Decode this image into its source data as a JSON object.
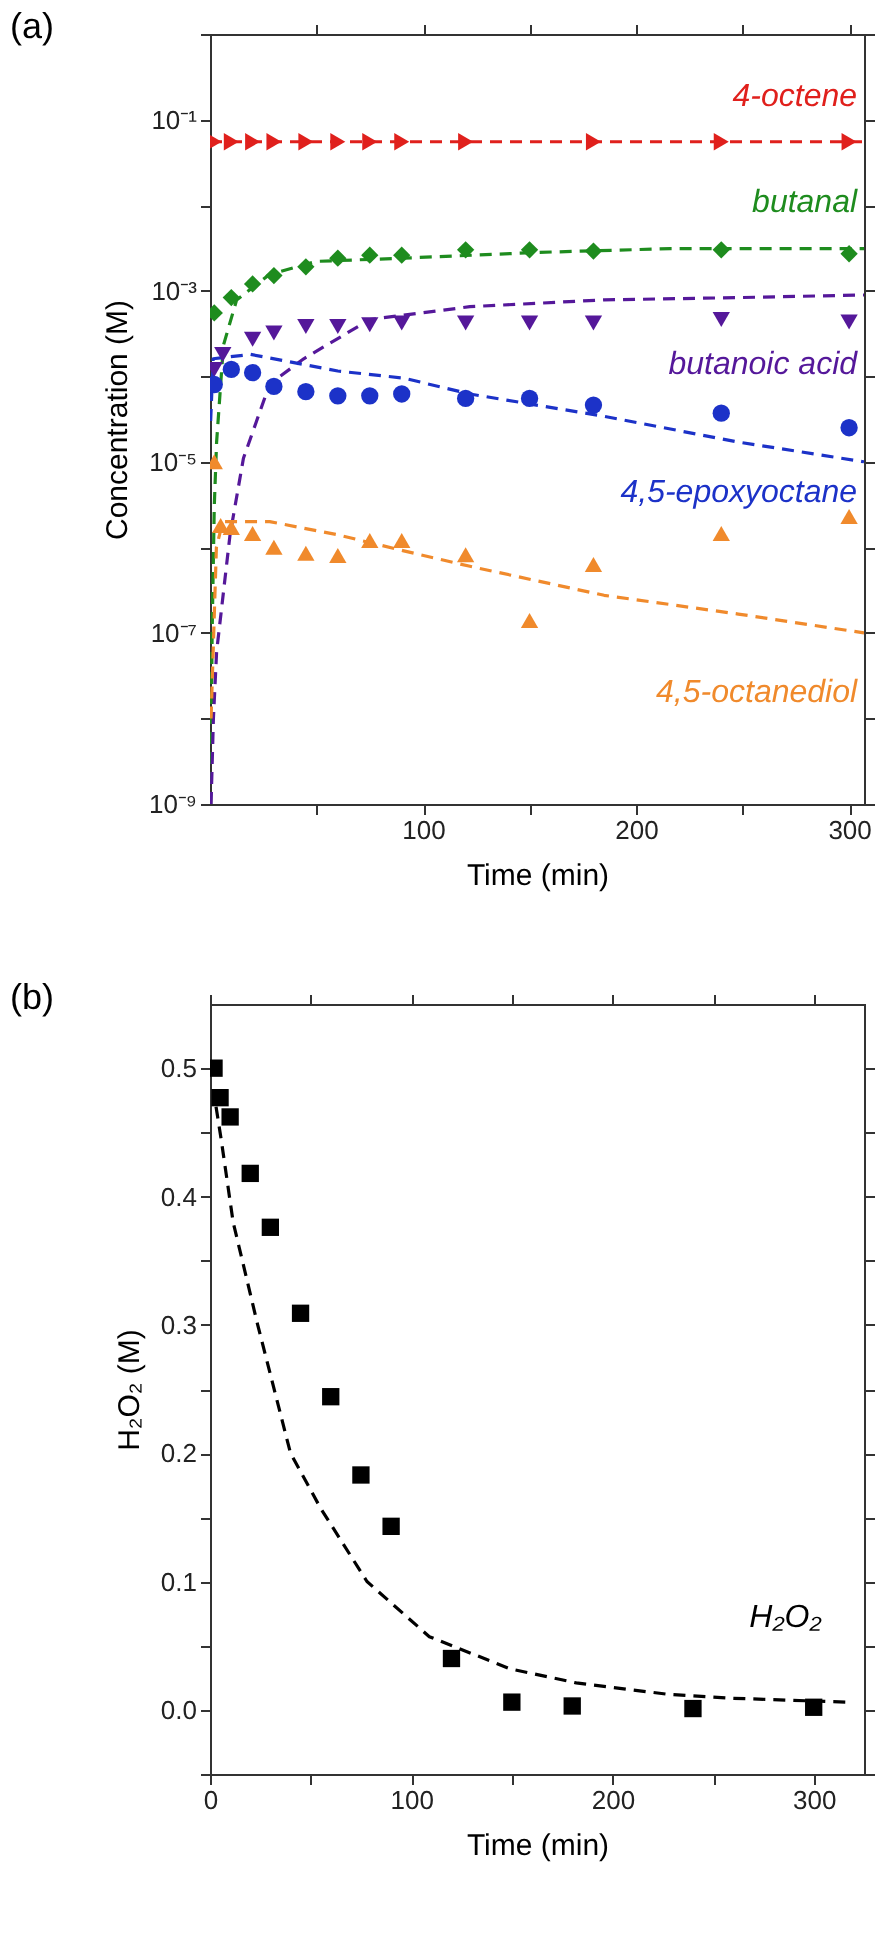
{
  "chart_data": [
    {
      "type": "scatter",
      "title": "(a)",
      "xlabel": "Time (min)",
      "ylabel": "Concentration (M)",
      "log": "y",
      "grid": false,
      "legend": false,
      "xlim": [
        0,
        307
      ],
      "xticks": [
        {
          "value": 50,
          "label": null
        },
        100,
        {
          "value": 150,
          "label": null
        },
        200,
        {
          "value": 250,
          "label": null
        },
        300
      ],
      "ylim": [
        1e-09,
        1
      ],
      "yticks": [
        {
          "value": 1,
          "label": null
        },
        {
          "value": 0.1,
          "label": "10⁻¹"
        },
        {
          "value": 0.01,
          "label": null
        },
        {
          "value": 0.001,
          "label": "10⁻³"
        },
        {
          "value": 0.0001,
          "label": null
        },
        {
          "value": 1e-05,
          "label": "10⁻⁵"
        },
        {
          "value": 1e-06,
          "label": null
        },
        {
          "value": 1e-07,
          "label": "10⁻⁷"
        },
        {
          "value": 1e-08,
          "label": null
        },
        {
          "value": 1e-09,
          "label": "10⁻⁹"
        }
      ],
      "series": [
        {
          "type": "line",
          "line_style": "dashed",
          "color": "#e0201c",
          "x": [
            0,
            307
          ],
          "values": [
            0.055,
            0.055
          ]
        },
        {
          "type": "line",
          "line_style": "dashed",
          "color": "#1e8c1e",
          "x": [
            0.3,
            1,
            2,
            3.1,
            6.3,
            12.5,
            28,
            50,
            91,
            154,
            216,
            307
          ],
          "values": [
            1e-09,
            1e-07,
            3e-06,
            1.7e-05,
            0.00023,
            0.00078,
            0.00155,
            0.0022,
            0.0024,
            0.0028,
            0.0031,
            0.0031
          ]
        },
        {
          "type": "line",
          "line_style": "dashed",
          "color": "#55189a",
          "x": [
            0.5,
            1.6,
            3.1,
            9.4,
            15.7,
            28,
            44,
            75,
            122,
            185,
            248,
            307
          ],
          "values": [
            1e-09,
            1e-08,
            6e-08,
            1.4e-06,
            1.1e-05,
            8.1e-05,
            0.00016,
            0.00046,
            0.00065,
            0.00078,
            0.00083,
            0.00089
          ]
        },
        {
          "type": "line",
          "line_style": "dashed",
          "color": "#1c32c8",
          "x": [
            0.3,
            1.5,
            19,
            60,
            91,
            122,
            185,
            248,
            307
          ],
          "values": [
            3e-05,
            0.00016,
            0.00018,
            0.000115,
            9.5e-05,
            6.2e-05,
            3.4e-05,
            1.7e-05,
            1e-05
          ]
        },
        {
          "type": "line",
          "line_style": "dashed",
          "color": "#f08a2c",
          "x": [
            0.5,
            3,
            6,
            28,
            60,
            91,
            122,
            185,
            248,
            307
          ],
          "values": [
            1e-08,
            1e-06,
            2e-06,
            2e-06,
            1.4e-06,
            9.1e-07,
            6e-07,
            2.75e-07,
            1.66e-07,
            1e-07
          ]
        },
        {
          "name": "4-octene",
          "type": "scatter",
          "marker": "triangle-right",
          "color": "#e0201c",
          "x": [
            2,
            10,
            20,
            30,
            45,
            60,
            75,
            90,
            120,
            180,
            240,
            300
          ],
          "values": [
            0.055,
            0.055,
            0.055,
            0.055,
            0.055,
            0.055,
            0.055,
            0.055,
            0.055,
            0.055,
            0.055,
            0.055
          ]
        },
        {
          "name": "butanal",
          "type": "scatter",
          "marker": "diamond",
          "color": "#1e8c1e",
          "x": [
            2,
            10,
            20,
            30,
            45,
            60,
            75,
            90,
            120,
            150,
            180,
            240,
            300
          ],
          "values": [
            0.00055,
            0.00083,
            0.0012,
            0.0015,
            0.0019,
            0.0024,
            0.0026,
            0.0026,
            0.003,
            0.003,
            0.0029,
            0.003,
            0.0027
          ]
        },
        {
          "name": "butanoic acid",
          "type": "scatter",
          "marker": "triangle-down",
          "color": "#55189a",
          "x": [
            2,
            6,
            20,
            30,
            45,
            60,
            75,
            90,
            120,
            150,
            180,
            240,
            300
          ],
          "values": [
            0.00012,
            0.00018,
            0.00027,
            0.00032,
            0.00038,
            0.00038,
            0.0004,
            0.00042,
            0.00042,
            0.00042,
            0.00042,
            0.00046,
            0.00043
          ]
        },
        {
          "name": "4,5-epoxyoctane",
          "type": "scatter",
          "marker": "circle",
          "color": "#1c32c8",
          "x": [
            2,
            10,
            20,
            30,
            45,
            60,
            75,
            90,
            120,
            150,
            180,
            240,
            300
          ],
          "values": [
            8e-05,
            0.00012,
            0.00011,
            7.6e-05,
            6.6e-05,
            5.9e-05,
            5.9e-05,
            6.2e-05,
            5.5e-05,
            5.5e-05,
            4.6e-05,
            3.7e-05,
            2.5e-05
          ]
        },
        {
          "name": "4,5-octanediol",
          "type": "scatter",
          "marker": "triangle-up",
          "color": "#f08a2c",
          "x": [
            2,
            5,
            10,
            20,
            30,
            45,
            60,
            75,
            90,
            120,
            150,
            180,
            240,
            300
          ],
          "values": [
            1e-05,
            1.8e-06,
            1.7e-06,
            1.45e-06,
            1e-06,
            8.5e-07,
            8e-07,
            1.2e-06,
            1.2e-06,
            8.2e-07,
            1.4e-07,
            6.3e-07,
            1.45e-06,
            2.3e-06
          ]
        }
      ]
    },
    {
      "type": "scatter",
      "title": "(b)",
      "xlabel": "Time (min)",
      "ylabel": "H₂O₂ (M)",
      "grid": false,
      "legend": false,
      "xlim": [
        0,
        325
      ],
      "xticks": [
        0,
        {
          "value": 50,
          "label": null
        },
        100,
        {
          "value": 150,
          "label": null
        },
        200,
        {
          "value": 250,
          "label": null
        },
        300
      ],
      "ylim": [
        -0.05,
        0.55
      ],
      "yticks": [
        {
          "value": -0.05,
          "label": null
        },
        {
          "value": 0,
          "label": "0.0"
        },
        {
          "value": 0.05,
          "label": null
        },
        0.1,
        {
          "value": 0.15,
          "label": null
        },
        0.2,
        {
          "value": 0.25,
          "label": null
        },
        0.3,
        {
          "value": 0.35,
          "label": null
        },
        0.4,
        {
          "value": 0.45,
          "label": null
        },
        0.5
      ],
      "series": [
        {
          "type": "line",
          "line_style": "dashed",
          "color": "#000000",
          "x": [
            3,
            5.6,
            11.5,
            23.7,
            40,
            55,
            78,
            109,
            149,
            182,
            228,
            260,
            316
          ],
          "values": [
            0.47,
            0.444,
            0.38,
            0.3,
            0.2,
            0.157,
            0.1,
            0.057,
            0.032,
            0.021,
            0.012,
            0.009,
            0.006
          ]
        },
        {
          "name": "H₂O₂",
          "type": "scatter",
          "marker": "square",
          "color": "#000000",
          "x": [
            2,
            5,
            10,
            20,
            30,
            45,
            60,
            75,
            90,
            120,
            150,
            180,
            240,
            300
          ],
          "values": [
            0.5,
            0.477,
            0.462,
            0.418,
            0.376,
            0.309,
            0.244,
            0.183,
            0.143,
            0.04,
            0.006,
            0.003,
            0.001,
            0.002
          ]
        }
      ]
    }
  ]
}
